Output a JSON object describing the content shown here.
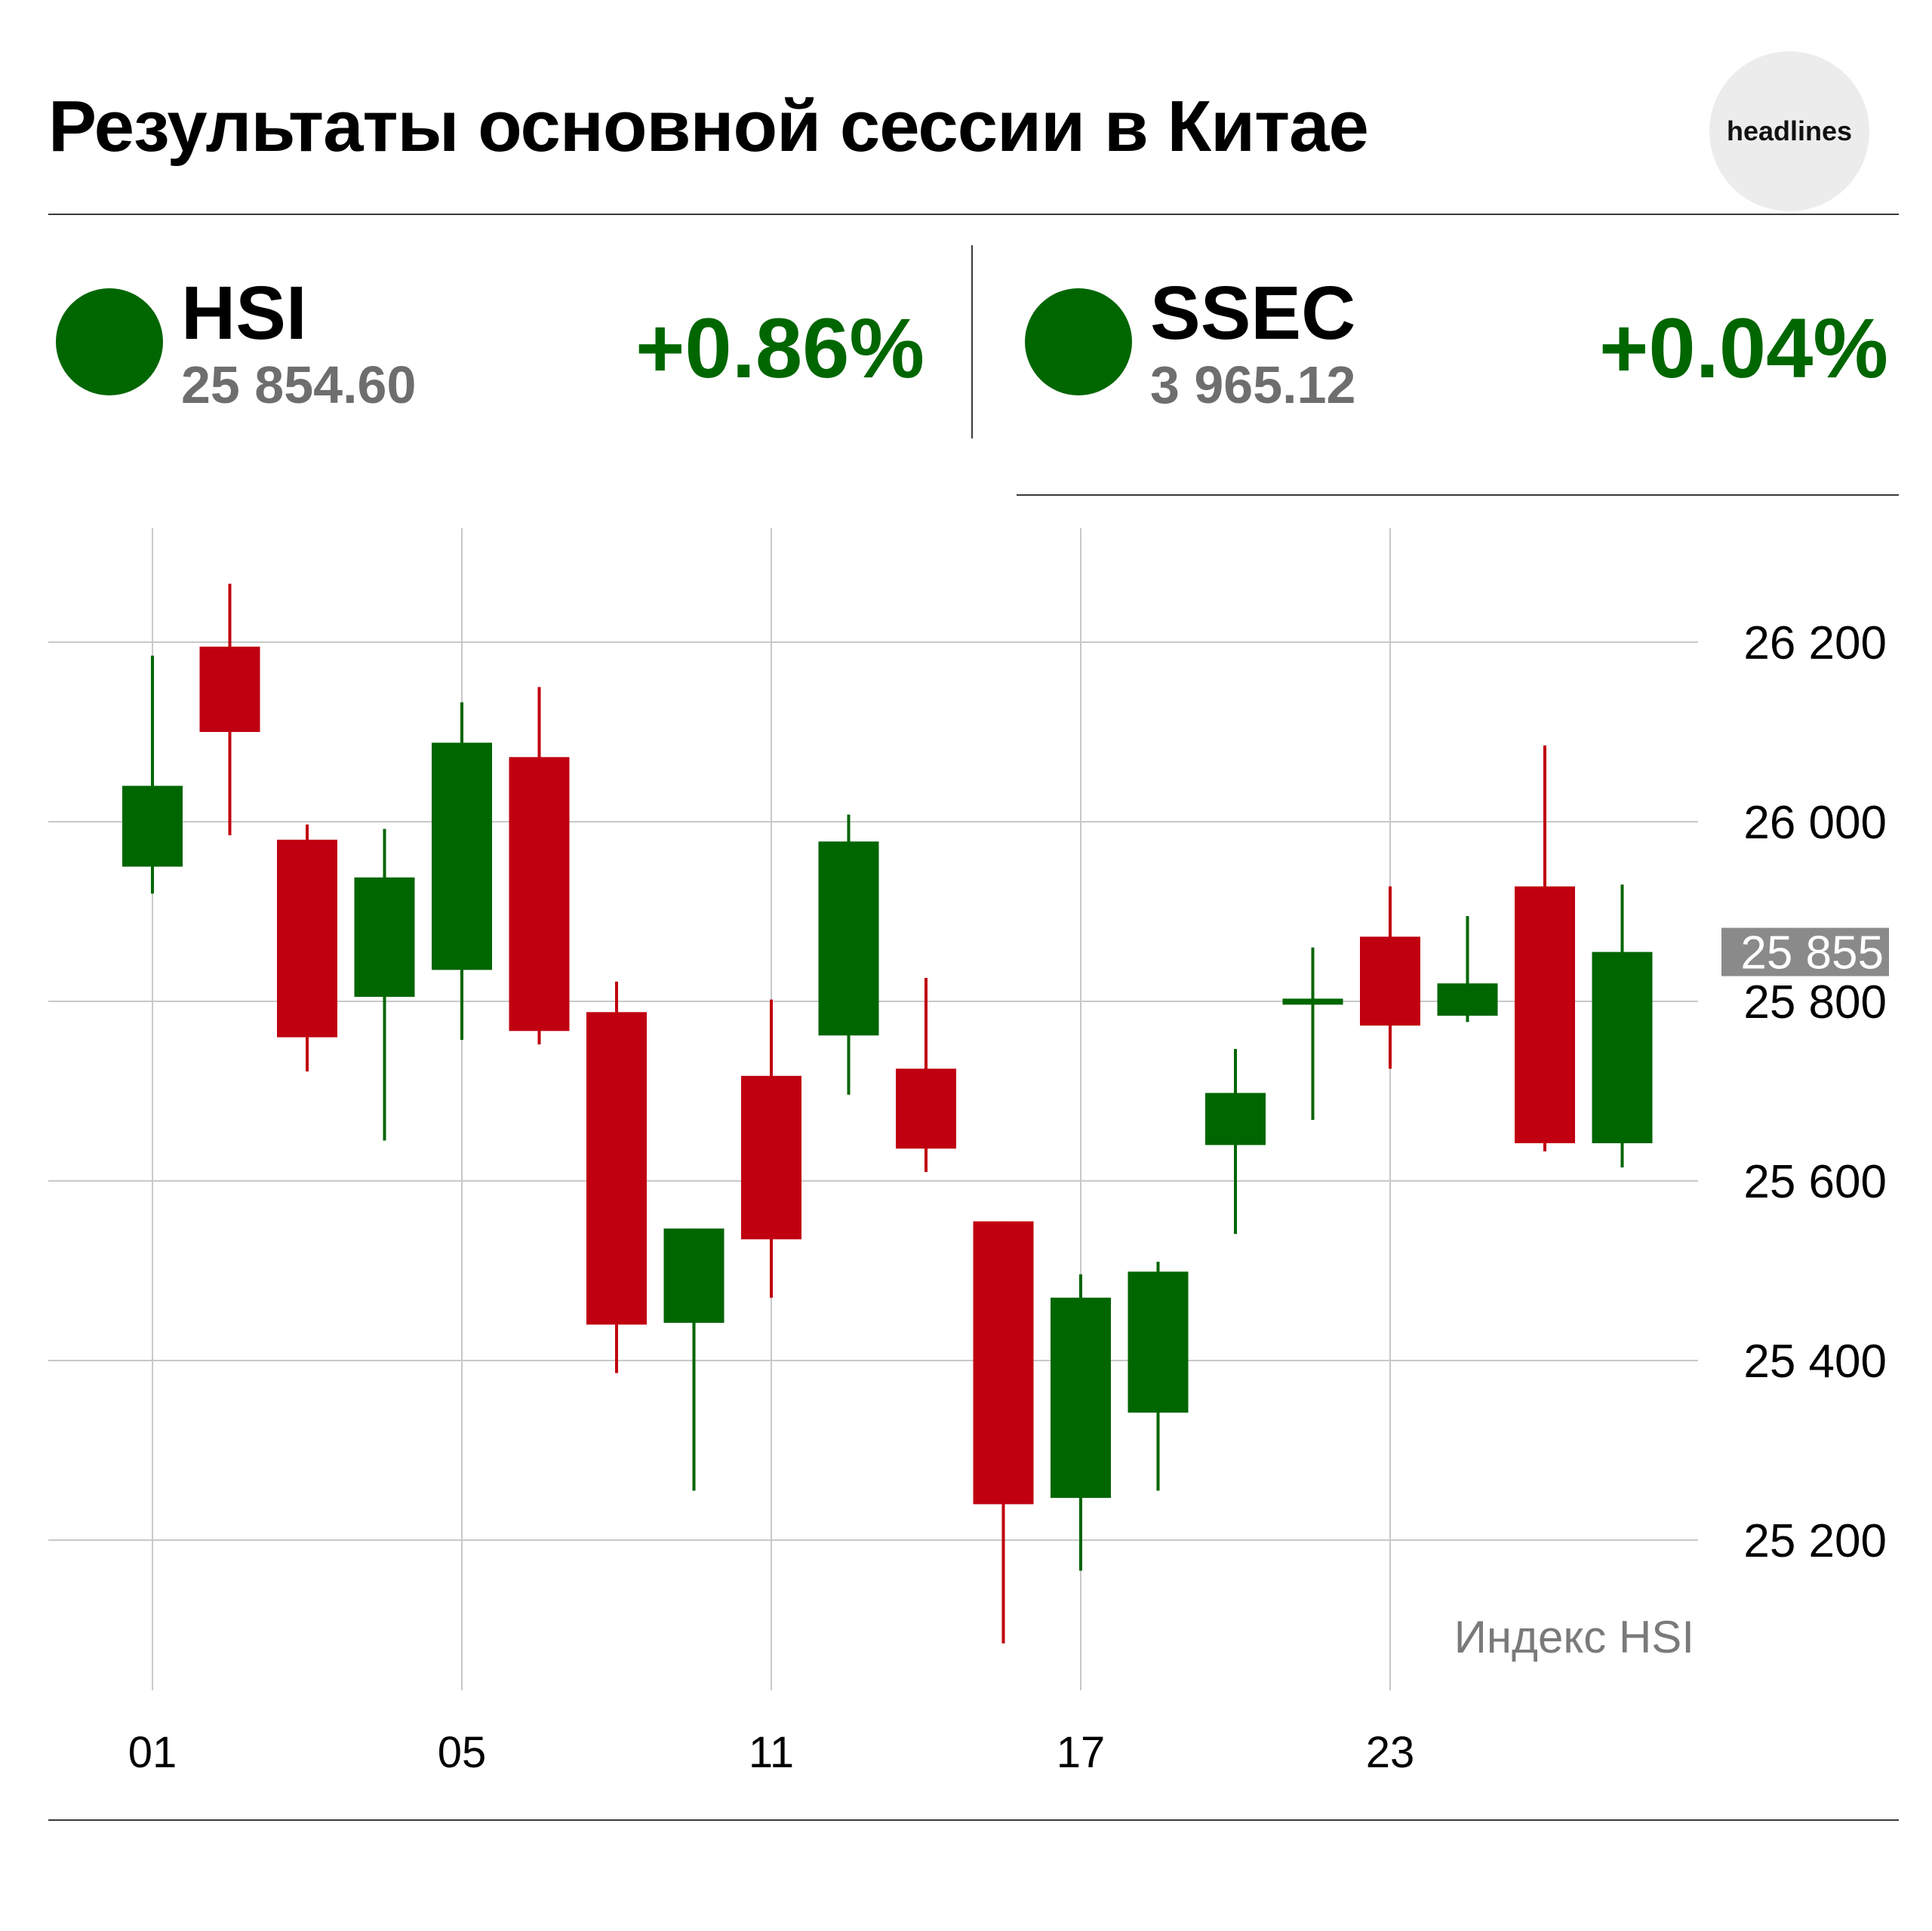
{
  "header": {
    "title": "Результаты основной сессии в Китае",
    "logo_text": "headlines"
  },
  "indices": [
    {
      "ticker": "HSI",
      "value": "25 854.60",
      "change": "+0.86%",
      "dot_color": "#006600",
      "change_color": "#006600"
    },
    {
      "ticker": "SSEC",
      "value": "3 965.12",
      "change": "+0.04%",
      "dot_color": "#006600",
      "change_color": "#006600"
    }
  ],
  "colors": {
    "up": "#006600",
    "down": "#c00010",
    "grid": "#c8c8c8",
    "axis_text": "#000000",
    "current_bg": "#8a8a8a"
  },
  "chart_data": {
    "type": "candlestick",
    "series_label": "Индекс HSI",
    "x_ticks": [
      {
        "label": "01",
        "day": 1
      },
      {
        "label": "05",
        "day": 5
      },
      {
        "label": "11",
        "day": 9
      },
      {
        "label": "17",
        "day": 13
      },
      {
        "label": "23",
        "day": 17
      }
    ],
    "y_ticks": [
      {
        "label": "26 200",
        "value": 26200
      },
      {
        "label": "26 000",
        "value": 26000
      },
      {
        "label": "25 800",
        "value": 25800
      },
      {
        "label": "25 600",
        "value": 25600
      },
      {
        "label": "25 400",
        "value": 25400
      },
      {
        "label": "25 200",
        "value": 25200
      }
    ],
    "ylim": [
      25080,
      26370
    ],
    "current": {
      "label": "25 855",
      "value": 25855
    },
    "candles": [
      {
        "day": 1,
        "open": 25950,
        "high": 26185,
        "low": 25920,
        "close": 26040
      },
      {
        "day": 2,
        "open": 26195,
        "high": 26265,
        "low": 25985,
        "close": 26100
      },
      {
        "day": 3,
        "open": 25980,
        "high": 25997,
        "low": 25722,
        "close": 25760
      },
      {
        "day": 4,
        "open": 25805,
        "high": 25992,
        "low": 25645,
        "close": 25938
      },
      {
        "day": 5,
        "open": 25835,
        "high": 26133,
        "low": 25757,
        "close": 26088
      },
      {
        "day": 6,
        "open": 26072,
        "high": 26150,
        "low": 25752,
        "close": 25767
      },
      {
        "day": 7,
        "open": 25788,
        "high": 25822,
        "low": 25386,
        "close": 25440
      },
      {
        "day": 8,
        "open": 25442,
        "high": 25547,
        "low": 25255,
        "close": 25547
      },
      {
        "day": 9,
        "open": 25717,
        "high": 25802,
        "low": 25470,
        "close": 25535
      },
      {
        "day": 10,
        "open": 25762,
        "high": 26008,
        "low": 25696,
        "close": 25978
      },
      {
        "day": 11,
        "open": 25725,
        "high": 25826,
        "low": 25610,
        "close": 25636
      },
      {
        "day": 12,
        "open": 25555,
        "high": 25555,
        "low": 25085,
        "close": 25240
      },
      {
        "day": 13,
        "open": 25247,
        "high": 25496,
        "low": 25166,
        "close": 25470
      },
      {
        "day": 14,
        "open": 25342,
        "high": 25510,
        "low": 25255,
        "close": 25499
      },
      {
        "day": 15,
        "open": 25640,
        "high": 25747,
        "low": 25541,
        "close": 25698
      },
      {
        "day": 16,
        "open": 25800,
        "high": 25860,
        "low": 25668,
        "close": 25803
      },
      {
        "day": 17,
        "open": 25872,
        "high": 25928,
        "low": 25725,
        "close": 25773
      },
      {
        "day": 18,
        "open": 25784,
        "high": 25895,
        "low": 25777,
        "close": 25820
      },
      {
        "day": 19,
        "open": 25928,
        "high": 26085,
        "low": 25633,
        "close": 25642
      },
      {
        "day": 20,
        "open": 25642,
        "high": 25930,
        "low": 25615,
        "close": 25855
      }
    ]
  }
}
